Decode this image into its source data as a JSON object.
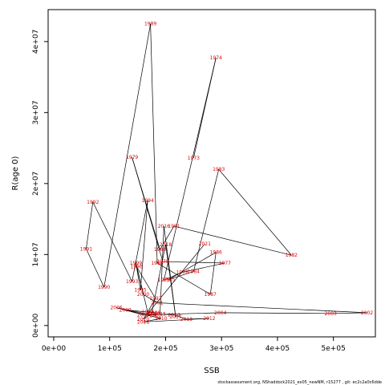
{
  "chart_data": {
    "type": "scatter",
    "xlabel": "SSB",
    "ylabel": "R(age 0)",
    "xlim": [
      -10000,
      575000
    ],
    "ylim": [
      -1600000,
      44500000
    ],
    "x_ticks": [
      {
        "value": 0,
        "label": "0e+00"
      },
      {
        "value": 100000,
        "label": "1e+05"
      },
      {
        "value": 200000,
        "label": "2e+05"
      },
      {
        "value": 300000,
        "label": "3e+05"
      },
      {
        "value": 400000,
        "label": "4e+05"
      },
      {
        "value": 500000,
        "label": "5e+05"
      }
    ],
    "y_ticks": [
      {
        "value": 0,
        "label": "0e+00"
      },
      {
        "value": 10000000,
        "label": "1e+07"
      },
      {
        "value": 20000000,
        "label": "2e+07"
      },
      {
        "value": 30000000,
        "label": "3e+07"
      },
      {
        "value": 40000000,
        "label": "4e+07"
      }
    ],
    "footer": "stockassessment.org, NShaddock2021_ex05_newNM, r15277 , git: ec2c2a0c6dde",
    "points": [
      {
        "year": "1973",
        "x": 250000,
        "y": 23600000
      },
      {
        "year": "1974",
        "x": 290000,
        "y": 37700000
      },
      {
        "year": "1975",
        "x": 197000,
        "y": 6400000
      },
      {
        "year": "1976",
        "x": 230000,
        "y": 7500000
      },
      {
        "year": "1977",
        "x": 306000,
        "y": 8800000
      },
      {
        "year": "1978",
        "x": 195000,
        "y": 9000000
      },
      {
        "year": "1979",
        "x": 140000,
        "y": 23700000
      },
      {
        "year": "1980",
        "x": 190000,
        "y": 10700000
      },
      {
        "year": "1981",
        "x": 215000,
        "y": 14000000
      },
      {
        "year": "1982",
        "x": 425000,
        "y": 9900000
      },
      {
        "year": "1983",
        "x": 295000,
        "y": 22000000
      },
      {
        "year": "1984",
        "x": 250000,
        "y": 7600000
      },
      {
        "year": "1985",
        "x": 206000,
        "y": 6500000
      },
      {
        "year": "1986",
        "x": 290000,
        "y": 10300000
      },
      {
        "year": "1987",
        "x": 280000,
        "y": 4400000
      },
      {
        "year": "1988",
        "x": 185000,
        "y": 8800000
      },
      {
        "year": "1989",
        "x": 173000,
        "y": 42500000
      },
      {
        "year": "1990",
        "x": 90000,
        "y": 5400000
      },
      {
        "year": "1991",
        "x": 58000,
        "y": 10800000
      },
      {
        "year": "1992",
        "x": 70000,
        "y": 17400000
      },
      {
        "year": "1993",
        "x": 140000,
        "y": 6200000
      },
      {
        "year": "1994",
        "x": 168000,
        "y": 17600000
      },
      {
        "year": "1995",
        "x": 155000,
        "y": 5000000
      },
      {
        "year": "1996",
        "x": 148000,
        "y": 8300000
      },
      {
        "year": "1997",
        "x": 182000,
        "y": 3800000
      },
      {
        "year": "1998",
        "x": 168000,
        "y": 1900000
      },
      {
        "year": "1999",
        "x": 147000,
        "y": 8800000
      },
      {
        "year": "2000",
        "x": 160000,
        "y": 4400000
      },
      {
        "year": "2001",
        "x": 185000,
        "y": 3200000
      },
      {
        "year": "2002",
        "x": 560000,
        "y": 1800000
      },
      {
        "year": "2003",
        "x": 495000,
        "y": 1700000
      },
      {
        "year": "2004",
        "x": 298000,
        "y": 1800000
      },
      {
        "year": "2005",
        "x": 160000,
        "y": 1500000
      },
      {
        "year": "2006",
        "x": 112000,
        "y": 2500000
      },
      {
        "year": "2007",
        "x": 182000,
        "y": 1400000
      },
      {
        "year": "2008",
        "x": 180000,
        "y": 1800000
      },
      {
        "year": "2009",
        "x": 128000,
        "y": 2200000
      },
      {
        "year": "2010",
        "x": 192000,
        "y": 1000000
      },
      {
        "year": "2011",
        "x": 160000,
        "y": 500000
      },
      {
        "year": "2012",
        "x": 278000,
        "y": 1000000
      },
      {
        "year": "2013",
        "x": 237000,
        "y": 900000
      },
      {
        "year": "2014",
        "x": 215000,
        "y": 1500000
      },
      {
        "year": "2015",
        "x": 190000,
        "y": 1600000
      },
      {
        "year": "2016",
        "x": 197000,
        "y": 14000000
      },
      {
        "year": "2017",
        "x": 218000,
        "y": 1200000
      },
      {
        "year": "2018",
        "x": 200000,
        "y": 11400000
      },
      {
        "year": "2019",
        "x": 175000,
        "y": 1700000
      },
      {
        "year": "2020",
        "x": 160000,
        "y": 900000
      },
      {
        "year": "2021",
        "x": 270000,
        "y": 11500000
      }
    ],
    "path_order": [
      "1973",
      "1974",
      "1975",
      "1976",
      "1977",
      "1978",
      "1979",
      "1980",
      "1981",
      "1982",
      "1983",
      "1984",
      "1985",
      "1986",
      "1987",
      "1988",
      "1989",
      "1990",
      "1991",
      "1992",
      "1993",
      "1994",
      "1995",
      "1996",
      "1997",
      "1998",
      "1999",
      "2000",
      "2001",
      "2002",
      "2003",
      "2004",
      "2005",
      "2006",
      "2007",
      "2008",
      "2009",
      "2010",
      "2011",
      "2012",
      "2013",
      "2014",
      "2015",
      "2016",
      "2017",
      "2018",
      "2019",
      "2020",
      "2021"
    ]
  }
}
